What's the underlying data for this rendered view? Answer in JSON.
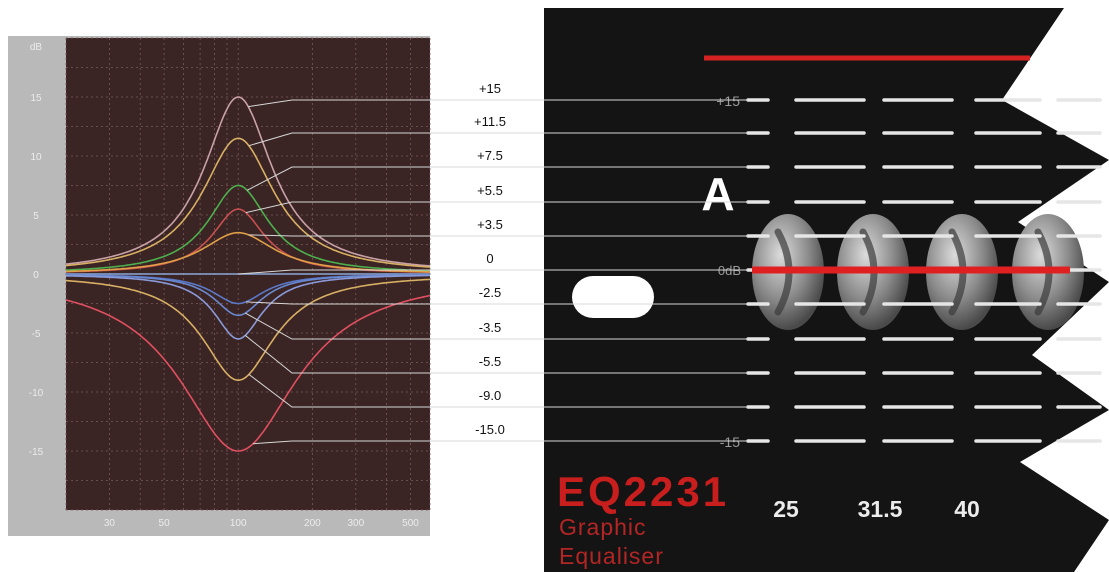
{
  "graph": {
    "y_unit": "dB",
    "y_ticks": [
      "15",
      "10",
      "5",
      "0",
      "-5",
      "-10",
      "-15"
    ],
    "x_ticks": [
      "30",
      "50",
      "100",
      "200",
      "300",
      "500"
    ]
  },
  "callouts": [
    "+15",
    "+11.5",
    "+7.5",
    "+5.5",
    "+3.5",
    "0",
    "-2.5",
    "-3.5",
    "-5.5",
    "-9.0",
    "-15.0"
  ],
  "panel": {
    "top_scale_label": "+15",
    "zero_label": "0dB",
    "bottom_scale_label": "-15",
    "channel_label": "A",
    "model": "EQ2231",
    "subtitle_line1": "Graphic",
    "subtitle_line2": "Equaliser",
    "band_frequencies": [
      "25",
      "31.5",
      "40"
    ]
  },
  "colors": {
    "graph_frame": "#b9b9b9",
    "plot_background": "#3a2424",
    "panel_background": "#141414",
    "accent_red": "#d42222",
    "zero_line": "#e02020"
  },
  "chart_data": {
    "type": "line",
    "x_scale": "log",
    "xlim": [
      20,
      600
    ],
    "ylim": [
      -20,
      20
    ],
    "x_ticks": [
      30,
      50,
      100,
      200,
      300,
      500
    ],
    "y_ticks": [
      15,
      10,
      5,
      0,
      -5,
      -10,
      -15
    ],
    "grid": true,
    "center_frequency": 100,
    "series": [
      {
        "gain": 15,
        "width": 0.34,
        "color": "#c9a2a8"
      },
      {
        "gain": 11.5,
        "width": 0.36,
        "color": "#d8b064"
      },
      {
        "gain": 7.5,
        "width": 0.3,
        "color": "#4db04d"
      },
      {
        "gain": 5.5,
        "width": 0.26,
        "color": "#c85050"
      },
      {
        "gain": 3.5,
        "width": 0.36,
        "color": "#e0a048"
      },
      {
        "gain": 0,
        "width": 0.3,
        "color": "#8aa8d8"
      },
      {
        "gain": -2.5,
        "width": 0.26,
        "color": "#5a78c8"
      },
      {
        "gain": -3.5,
        "width": 0.24,
        "color": "#6a88d0"
      },
      {
        "gain": -5.5,
        "width": 0.24,
        "color": "#8a9ad8"
      },
      {
        "gain": -9.0,
        "width": 0.36,
        "color": "#d8b064"
      },
      {
        "gain": -15.0,
        "width": 0.58,
        "color": "#e05060"
      }
    ]
  }
}
